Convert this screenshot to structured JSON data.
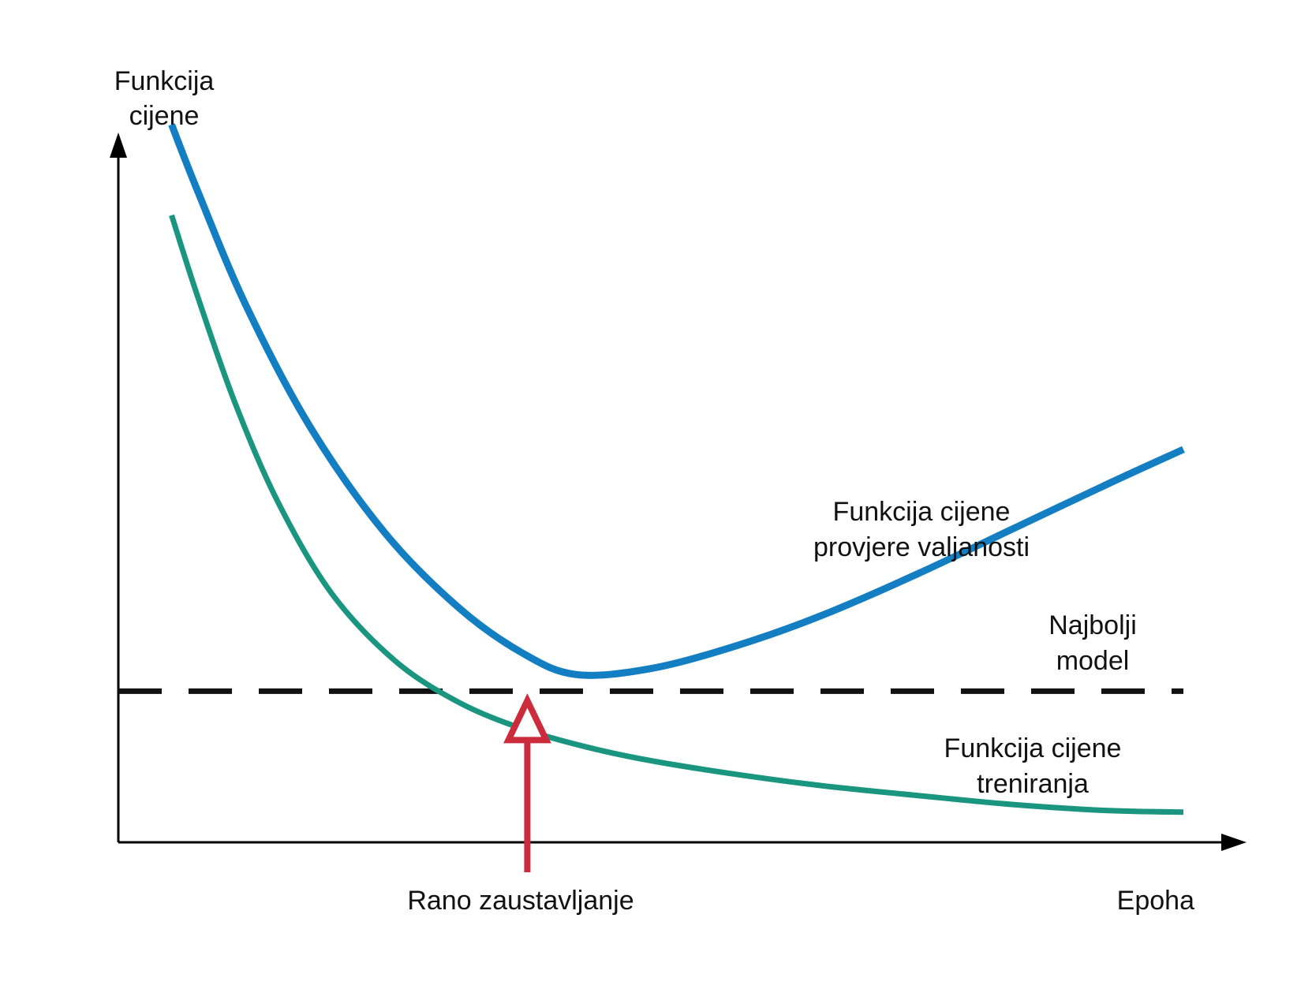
{
  "chart_data": {
    "type": "line",
    "ylabel": [
      "Funkcija",
      "cijene"
    ],
    "xlabel": "Epoha",
    "xlim": [
      0,
      100
    ],
    "ylim": [
      0,
      100
    ],
    "grid": false,
    "series": [
      {
        "name": "Funkcija cijene provjere valjanosti",
        "label_lines": [
          "Funkcija cijene",
          "provjere valjanosti"
        ],
        "color": "#137fc2",
        "x": [
          5,
          7.5,
          12,
          18,
          25,
          32,
          38,
          43,
          50,
          58,
          66,
          75,
          84,
          93,
          100
        ],
        "y": [
          95,
          86,
          71,
          55,
          41,
          31,
          25,
          22.2,
          23,
          26,
          30,
          35.5,
          41.5,
          47.5,
          52
        ]
      },
      {
        "name": "Funkcija cijene treniranja",
        "label_lines": [
          "Funkcija cijene",
          "treniranja"
        ],
        "color": "#1a9680",
        "x": [
          5,
          7.5,
          11,
          15,
          20,
          26,
          32,
          38,
          44,
          50,
          58,
          66,
          75,
          84,
          93,
          100
        ],
        "y": [
          83,
          72,
          58,
          45,
          33,
          24,
          18.5,
          15,
          12.6,
          10.8,
          9,
          7.5,
          6.2,
          5,
          4.2,
          4
        ]
      }
    ],
    "reference_line": {
      "y": 20,
      "color": "#111111",
      "label_lines": [
        "Najbolji",
        "model"
      ]
    },
    "annotation": {
      "x": 38.4,
      "label": "Rano zaustavljanje",
      "color": "#cc2b3b"
    },
    "axis_color": "#000000"
  }
}
